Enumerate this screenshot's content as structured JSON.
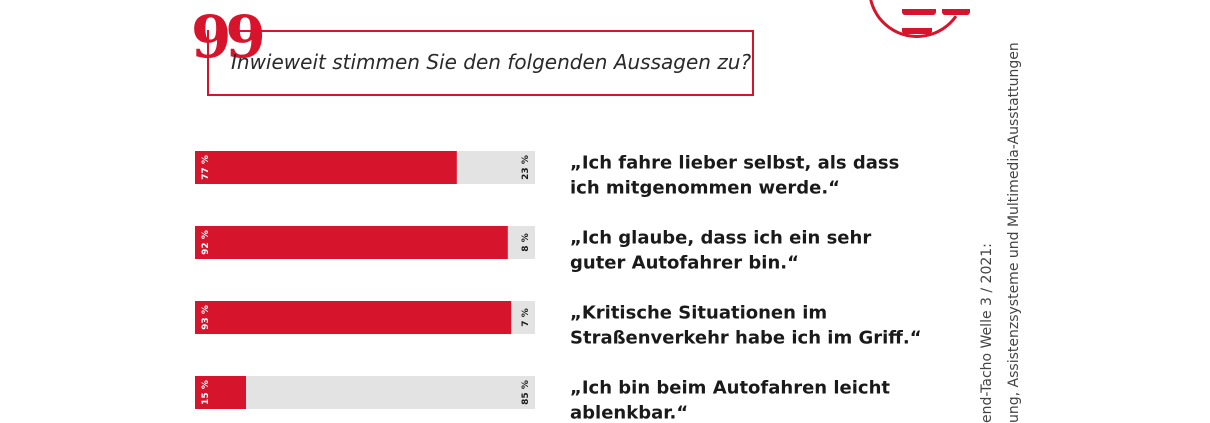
{
  "question": "Inwieweit stimmen Sie den folgenden Aussagen zu?",
  "quote_symbol": "99",
  "source_lines": [
    "end-Tacho Welle 3 / 2021:",
    "ung, Assistenzsysteme und Multimedia-Ausstattungen"
  ],
  "colors": {
    "accent": "#d6142b",
    "rest": "#e3e3e3"
  },
  "chart_data": {
    "type": "bar",
    "orientation": "horizontal-stacked",
    "xlim": [
      0,
      100
    ],
    "series": [
      {
        "name": "",
        "color": "#d6142b",
        "values": [
          77,
          92,
          93,
          15
        ],
        "labels": [
          "77 %",
          "92 %",
          "93 %",
          "15 %"
        ]
      },
      {
        "name": "",
        "color": "#e3e3e3",
        "values": [
          23,
          8,
          7,
          85
        ],
        "labels": [
          "23 %",
          "8 %",
          "7 %",
          "85 %"
        ]
      }
    ],
    "categories": [
      [
        "„Ich fahre lieber selbst, als dass",
        "ich mitgenommen werde.“"
      ],
      [
        "„Ich glaube, dass ich ein sehr",
        "guter Autofahrer bin.“"
      ],
      [
        "„Kritische Situationen im",
        "Straßenverkehr habe ich im Griff.“"
      ],
      [
        "„Ich bin beim Autofahren leicht",
        "ablenkbar.“"
      ]
    ]
  }
}
